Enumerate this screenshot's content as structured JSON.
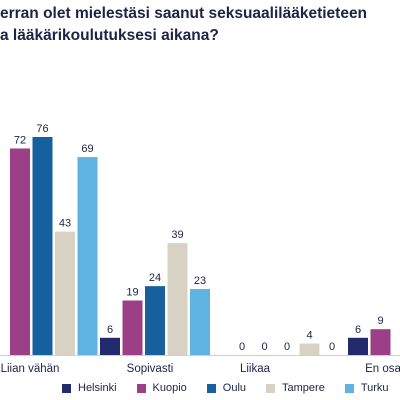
{
  "chart_data": {
    "type": "bar",
    "title_lines": [
      "erran olet mielestäsi saanut seksuaalilääketieteen",
      "a lääkärikoulutuksesi aikana?"
    ],
    "categories": [
      "Liian vähän",
      "Sopivasti",
      "Liikaa",
      "En osa"
    ],
    "series": [
      {
        "name": "Helsinki",
        "color": "#232a6e",
        "values": [
          null,
          6,
          0,
          6
        ]
      },
      {
        "name": "Kuopio",
        "color": "#9b3f86",
        "values": [
          72,
          19,
          0,
          9
        ]
      },
      {
        "name": "Oulu",
        "color": "#16609f",
        "values": [
          76,
          24,
          0,
          null
        ]
      },
      {
        "name": "Tampere",
        "color": "#d8d2c4",
        "values": [
          43,
          39,
          4,
          null
        ]
      },
      {
        "name": "Turku",
        "color": "#5fb3e1",
        "values": [
          69,
          23,
          0,
          null
        ]
      }
    ],
    "ylim": [
      0,
      76
    ],
    "grid": false,
    "legend": "bottom"
  }
}
